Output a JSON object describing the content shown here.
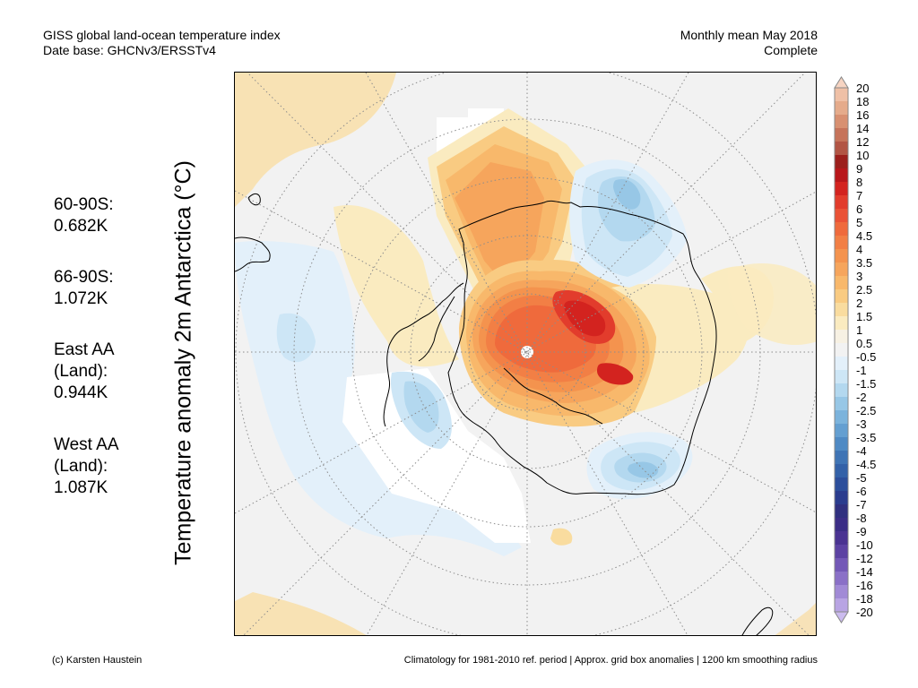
{
  "header": {
    "title_line1": "GISS global land-ocean temperature index",
    "title_line2": "Date base: GHCNv3/ERSSTv4",
    "period_line1": "Monthly mean May 2018",
    "period_line2": "Complete"
  },
  "axis_label": "Temperature anomaly 2m Antarctica (°C)",
  "stats": [
    {
      "text": "60-90S:\n0.682K"
    },
    {
      "text": "66-90S:\n1.072K"
    },
    {
      "text": "East AA\n(Land):\n0.944K"
    },
    {
      "text": "West AA\n(Land):\n1.087K"
    }
  ],
  "colorbar": {
    "labels": [
      "20",
      "18",
      "16",
      "14",
      "12",
      "10",
      "9",
      "8",
      "7",
      "6",
      "5",
      "4.5",
      "4",
      "3.5",
      "3",
      "2.5",
      "2",
      "1.5",
      "1",
      "0.5",
      "-0.5",
      "-1",
      "-1.5",
      "-2",
      "-2.5",
      "-3",
      "-3.5",
      "-4",
      "-4.5",
      "-5",
      "-6",
      "-7",
      "-8",
      "-9",
      "-10",
      "-12",
      "-14",
      "-16",
      "-18",
      "-20"
    ],
    "colors": [
      "#f6d4c2",
      "#efc0a6",
      "#e5ab8b",
      "#d89071",
      "#c6735a",
      "#b25544",
      "#9c1f1c",
      "#b8161a",
      "#d3231f",
      "#e23c2c",
      "#ea5236",
      "#ef6a3c",
      "#f27f45",
      "#f4934e",
      "#f6a55c",
      "#f8b86b",
      "#f9cb82",
      "#f9dc9f",
      "#faebc0",
      "#f7f1e3",
      "#f2f2f2",
      "#e3f0fa",
      "#cde6f6",
      "#b3d8ef",
      "#97c7e6",
      "#7bb3dc",
      "#649fd1",
      "#4f8ac4",
      "#3f74b5",
      "#3361a8",
      "#2c4e9b",
      "#2a3c8e",
      "#30307f",
      "#3b2d86",
      "#4a3392",
      "#5c42a3",
      "#7358b7",
      "#8a70c7",
      "#a18ad6",
      "#b8a4e3",
      "#cbbbee"
    ]
  },
  "map": {
    "ocean_color": "#f2f2f2",
    "coast_color": "#000000",
    "grid_color": "#8c8c8c"
  },
  "footer": {
    "left": "(c) Karsten Haustein",
    "right": "Climatology for 1981-2010 ref. period | Approx. grid box anomalies | 1200 km smoothing radius"
  }
}
